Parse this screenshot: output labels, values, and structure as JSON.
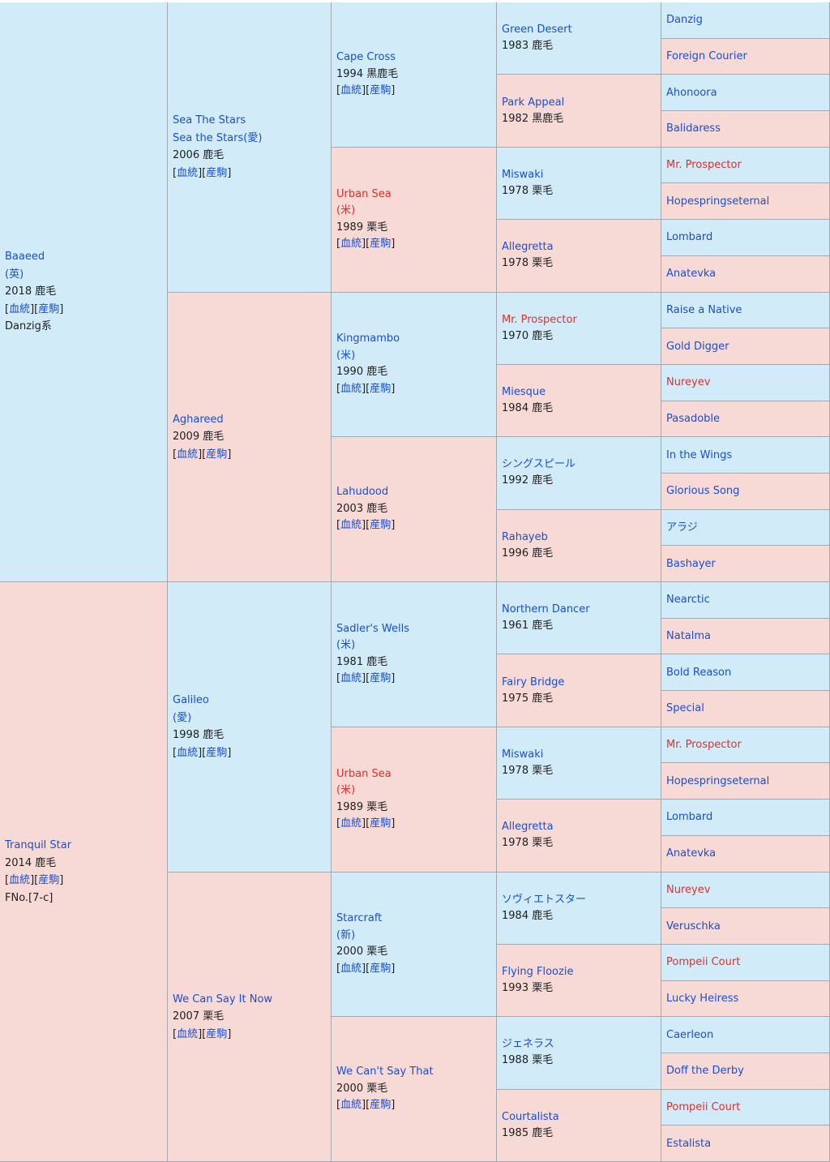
{
  "gen1": [
    {
      "name": "Baaeed",
      "country": "(英)",
      "info": "2018 鹿毛",
      "links": [
        "血統",
        "産駒"
      ],
      "extra": "Danzig系"
    },
    {
      "name": "Tranquil Star",
      "info": "2014 鹿毛",
      "links": [
        "血統",
        "産駒"
      ],
      "extra": "FNo.[7-c]"
    }
  ],
  "gen2": [
    {
      "name": "Sea The Stars",
      "alt": "Sea the Stars(愛)",
      "info": "2006 鹿毛",
      "links": [
        "血統",
        "産駒"
      ]
    },
    {
      "name": "Aghareed",
      "info": "2009 鹿毛",
      "links": [
        "血統",
        "産駒"
      ]
    },
    {
      "name": "Galileo",
      "country": "(愛)",
      "info": "1998 鹿毛",
      "links": [
        "血統",
        "産駒"
      ]
    },
    {
      "name": "We Can Say It Now",
      "info": "2007 栗毛",
      "links": [
        "血統",
        "産駒"
      ]
    }
  ],
  "gen3": [
    {
      "name": "Cape Cross",
      "info": "1994 黒鹿毛",
      "links": [
        "血統",
        "産駒"
      ]
    },
    {
      "name": "Urban Sea",
      "country": "(米)",
      "info": "1989 栗毛",
      "links": [
        "血統",
        "産駒"
      ]
    },
    {
      "name": "Kingmambo",
      "country": "(米)",
      "info": "1990 鹿毛",
      "links": [
        "血統",
        "産駒"
      ]
    },
    {
      "name": "Lahudood",
      "info": "2003 鹿毛",
      "links": [
        "血統",
        "産駒"
      ]
    },
    {
      "name": "Sadler's Wells",
      "country": "(米)",
      "info": "1981 鹿毛",
      "links": [
        "血統",
        "産駒"
      ]
    },
    {
      "name": "Urban Sea",
      "country": "(米)",
      "info": "1989 栗毛",
      "links": [
        "血統",
        "産駒"
      ]
    },
    {
      "name": "Starcraft",
      "country": "(新)",
      "info": "2000 栗毛",
      "links": [
        "血統",
        "産駒"
      ]
    },
    {
      "name": "We Can't Say That",
      "info": "2000 栗毛",
      "links": [
        "血統",
        "産駒"
      ]
    }
  ],
  "gen4": [
    {
      "name": "Green Desert",
      "info": "1983 鹿毛"
    },
    {
      "name": "Park Appeal",
      "info": "1982 黒鹿毛"
    },
    {
      "name": "Miswaki",
      "info": "1978 栗毛"
    },
    {
      "name": "Allegretta",
      "info": "1978 栗毛"
    },
    {
      "name": "Mr. Prospector",
      "info": "1970 鹿毛"
    },
    {
      "name": "Miesque",
      "info": "1984 鹿毛"
    },
    {
      "name": "シングスピール",
      "info": "1992 鹿毛"
    },
    {
      "name": "Rahayeb",
      "info": "1996 鹿毛"
    },
    {
      "name": "Northern Dancer",
      "info": "1961 鹿毛"
    },
    {
      "name": "Fairy Bridge",
      "info": "1975 鹿毛"
    },
    {
      "name": "Miswaki",
      "info": "1978 栗毛"
    },
    {
      "name": "Allegretta",
      "info": "1978 栗毛"
    },
    {
      "name": "ソヴィエトスター",
      "info": "1984 鹿毛"
    },
    {
      "name": "Flying Floozie",
      "info": "1993 栗毛"
    },
    {
      "name": "ジェネラス",
      "info": "1988 栗毛"
    },
    {
      "name": "Courtalista",
      "info": "1985 鹿毛"
    }
  ],
  "gen5": [
    "Danzig",
    "Foreign Courier",
    "Ahonoora",
    "Balidaress",
    "Mr. Prospector",
    "Hopespringseternal",
    "Lombard",
    "Anatevka",
    "Raise a Native",
    "Gold Digger",
    "Nureyev",
    "Pasadoble",
    "In the Wings",
    "Glorious Song",
    "アラジ",
    "Bashayer",
    "Nearctic",
    "Natalma",
    "Bold Reason",
    "Special",
    "Mr. Prospector",
    "Hopespringseternal",
    "Lombard",
    "Anatevka",
    "Nureyev",
    "Veruschka",
    "Pompeii Court",
    "Lucky Heiress",
    "Caerleon",
    "Doff the Derby",
    "Pompeii Court",
    "Estalista"
  ],
  "colors": {
    "male": "#d1ebf8",
    "female": "#f7d9d6",
    "link": "#1a4fd1",
    "inbreed": "#d9322f",
    "border": "#a2a9b1"
  }
}
